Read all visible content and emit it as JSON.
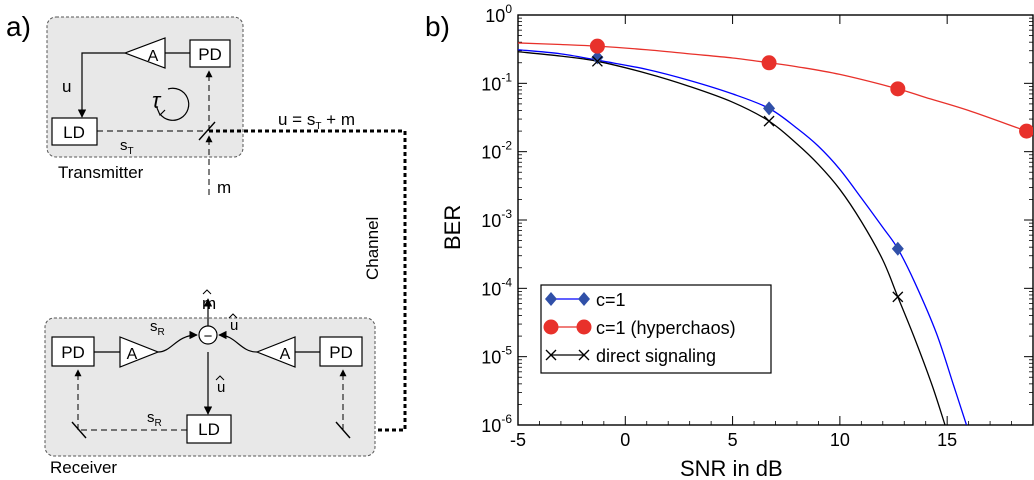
{
  "diagram": {
    "panel_label": "a)",
    "transmitter": {
      "label": "Transmitter",
      "pd": "PD",
      "amp": "A",
      "ld": "LD",
      "u": "u",
      "tau": "τ",
      "s": "s",
      "s_sub": "T",
      "m": "m"
    },
    "channel": {
      "label": "Channel",
      "eq_pre": "u = s",
      "eq_sub": "T",
      "eq_post": " + m"
    },
    "receiver": {
      "label": "Receiver",
      "pd_left": "PD",
      "amp_left": "A",
      "amp_right": "A",
      "pd_right": "PD",
      "ld": "LD",
      "m_hat": "m",
      "s_r": "s",
      "s_r_sub": "R",
      "u_hat": "u",
      "u_hat_down": "u",
      "s_r_bottom": "s",
      "s_r_bottom_sub": "R",
      "minus": "−"
    }
  },
  "chart_data": {
    "panel_label": "b)",
    "type": "scatter",
    "xlabel": "SNR in dB",
    "ylabel": "BER",
    "xlim": [
      -5,
      19
    ],
    "ylim": [
      1e-06,
      1
    ],
    "yscale": "log",
    "xticks": [
      "-5",
      "0",
      "5",
      "10",
      "15"
    ],
    "xtick_values": [
      -5,
      0,
      5,
      10,
      15
    ],
    "yticks": [
      {
        "base": "10",
        "exp": "0",
        "value": 1
      },
      {
        "base": "10",
        "exp": "-1",
        "value": 0.1
      },
      {
        "base": "10",
        "exp": "-2",
        "value": 0.01
      },
      {
        "base": "10",
        "exp": "-3",
        "value": 0.001
      },
      {
        "base": "10",
        "exp": "-4",
        "value": 0.0001
      },
      {
        "base": "10",
        "exp": "-5",
        "value": 1e-05
      },
      {
        "base": "10",
        "exp": "-6",
        "value": 1e-06
      }
    ],
    "legend_position": "lower-left",
    "series": [
      {
        "name": "c=1",
        "color": "#3050a8",
        "line_color": "#0000ff",
        "marker": "diamond",
        "points": [
          [
            -1.3,
            0.24
          ],
          [
            6.7,
            0.043
          ],
          [
            12.7,
            0.00038
          ]
        ],
        "curve": [
          [
            -5,
            0.31
          ],
          [
            -3,
            0.27
          ],
          [
            -1,
            0.21
          ],
          [
            1,
            0.16
          ],
          [
            3,
            0.11
          ],
          [
            5,
            0.07
          ],
          [
            6.7,
            0.043
          ],
          [
            8,
            0.022
          ],
          [
            9,
            0.012
          ],
          [
            10,
            0.0055
          ],
          [
            11,
            0.0021
          ],
          [
            12,
            0.00078
          ],
          [
            12.7,
            0.00038
          ],
          [
            13.5,
            0.00012
          ],
          [
            14.5,
            2.2e-05
          ],
          [
            15.3,
            3.8e-06
          ],
          [
            15.9,
            1e-06
          ]
        ]
      },
      {
        "name": "c=1 (hyperchaos)",
        "color": "#e8312b",
        "line_color": "#e8312b",
        "marker": "circle",
        "points": [
          [
            -1.3,
            0.35
          ],
          [
            6.7,
            0.2
          ],
          [
            12.7,
            0.083
          ],
          [
            18.7,
            0.02
          ]
        ],
        "curve": [
          [
            -5,
            0.39
          ],
          [
            -3,
            0.37
          ],
          [
            -1.3,
            0.35
          ],
          [
            1,
            0.31
          ],
          [
            3,
            0.27
          ],
          [
            5,
            0.235
          ],
          [
            6.7,
            0.2
          ],
          [
            8,
            0.175
          ],
          [
            10,
            0.135
          ],
          [
            12.7,
            0.083
          ],
          [
            14,
            0.062
          ],
          [
            16,
            0.04
          ],
          [
            18.7,
            0.02
          ],
          [
            19,
            0.019
          ]
        ]
      },
      {
        "name": "direct signaling",
        "color": "#000000",
        "line_color": "#000000",
        "marker": "x",
        "points": [
          [
            -1.3,
            0.21
          ],
          [
            6.7,
            0.028
          ],
          [
            12.7,
            7.5e-05
          ]
        ],
        "curve": [
          [
            -5,
            0.29
          ],
          [
            -3,
            0.25
          ],
          [
            -1.3,
            0.21
          ],
          [
            1,
            0.14
          ],
          [
            3,
            0.09
          ],
          [
            5,
            0.053
          ],
          [
            6.7,
            0.028
          ],
          [
            8,
            0.013
          ],
          [
            9,
            0.0065
          ],
          [
            10,
            0.0028
          ],
          [
            11,
            0.00095
          ],
          [
            12,
            0.00026
          ],
          [
            12.7,
            7.5e-05
          ],
          [
            13.5,
            1.8e-05
          ],
          [
            14.3,
            3.8e-06
          ],
          [
            14.9,
            1e-06
          ]
        ]
      }
    ]
  }
}
